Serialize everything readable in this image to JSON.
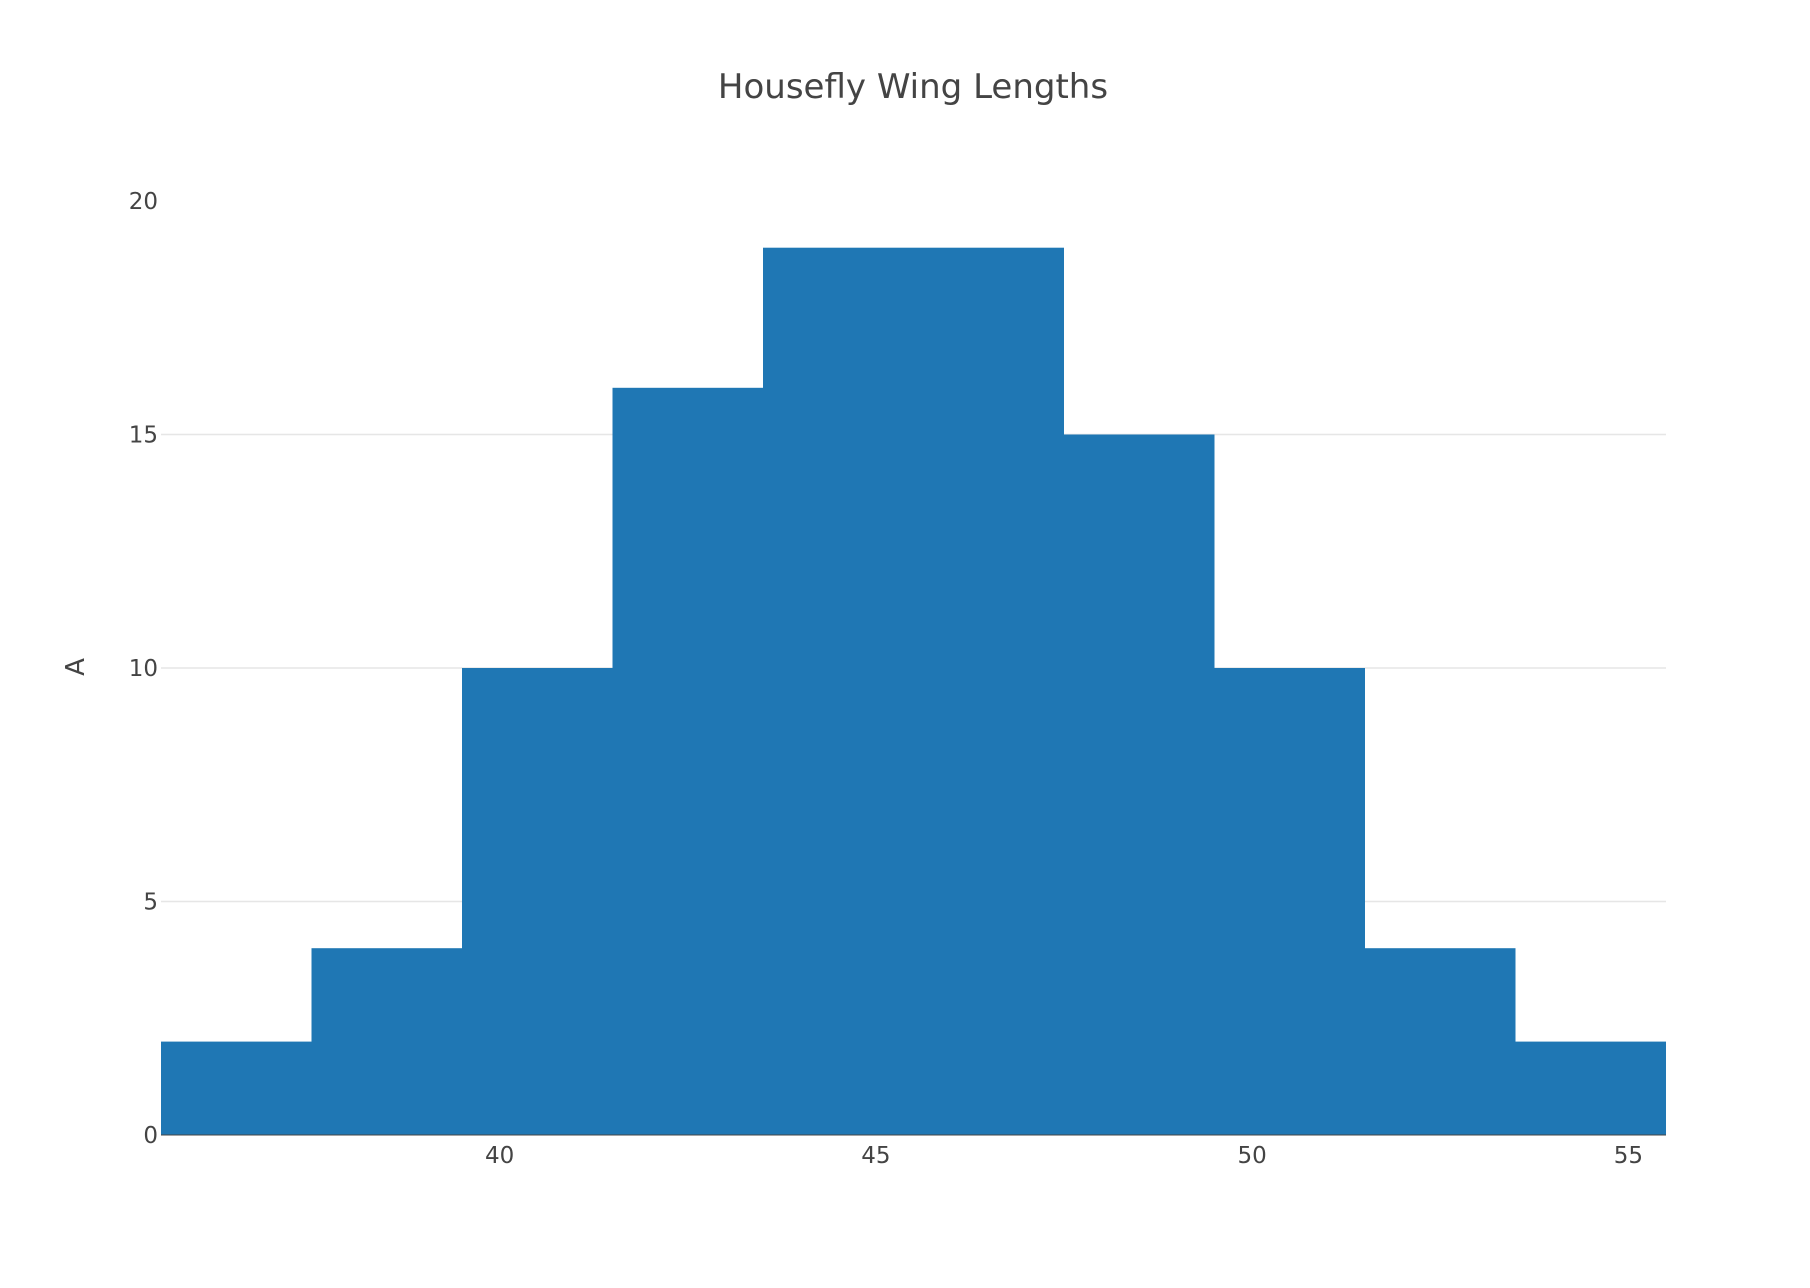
{
  "chart_data": {
    "type": "bar",
    "title": "Housefly Wing Lengths",
    "xlabel": "",
    "ylabel": "A",
    "bins": [
      {
        "start": 35.5,
        "end": 37.5,
        "count": 2
      },
      {
        "start": 37.5,
        "end": 39.5,
        "count": 4
      },
      {
        "start": 39.5,
        "end": 41.5,
        "count": 10
      },
      {
        "start": 41.5,
        "end": 43.5,
        "count": 16
      },
      {
        "start": 43.5,
        "end": 45.5,
        "count": 19
      },
      {
        "start": 45.5,
        "end": 47.5,
        "count": 19
      },
      {
        "start": 47.5,
        "end": 49.5,
        "count": 15
      },
      {
        "start": 49.5,
        "end": 51.5,
        "count": 10
      },
      {
        "start": 51.5,
        "end": 53.5,
        "count": 4
      },
      {
        "start": 53.5,
        "end": 55.5,
        "count": 2
      }
    ],
    "xlim": [
      35.5,
      55.5
    ],
    "ylim": [
      0,
      20
    ],
    "x_ticks": [
      40,
      45,
      50,
      55
    ],
    "y_ticks": [
      0,
      5,
      10,
      15,
      20
    ],
    "grid": true,
    "legend": "none",
    "bar_color": "#1f77b4",
    "grid_color": "#e6e6e6",
    "text_color": "#444444"
  }
}
